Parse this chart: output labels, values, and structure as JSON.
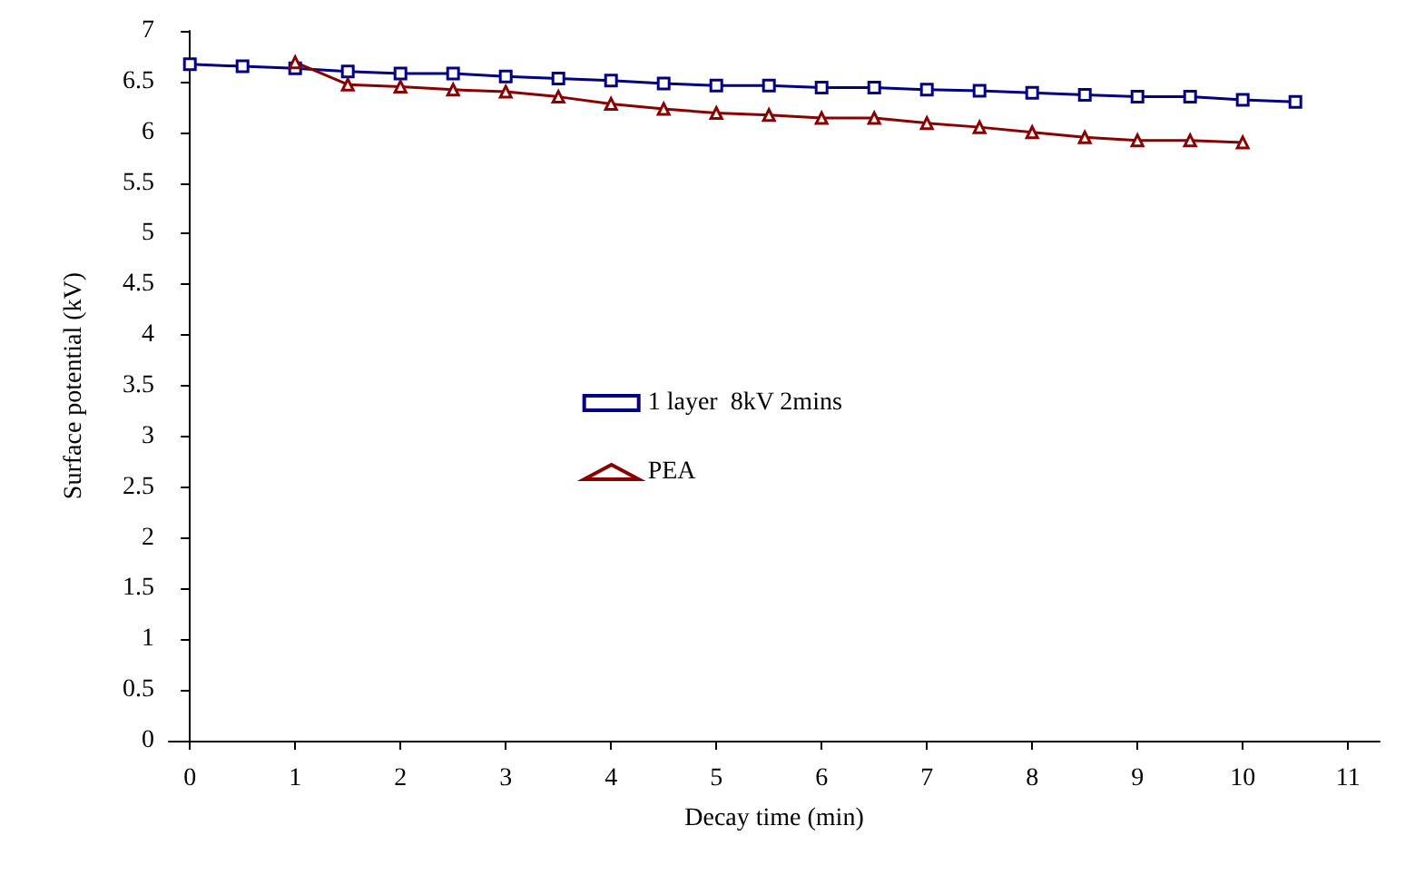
{
  "chart_data": {
    "type": "line",
    "xlabel": "Decay time (min)",
    "ylabel": "Surface potential (kV)",
    "xlim": [
      -0.2,
      11.3
    ],
    "xticks": [
      0,
      1,
      2,
      3,
      4,
      5,
      6,
      7,
      8,
      9,
      10,
      11
    ],
    "ylim": [
      0,
      7
    ],
    "yticks": [
      0,
      0.5,
      1,
      1.5,
      2,
      2.5,
      3,
      3.5,
      4,
      4.5,
      5,
      5.5,
      6,
      6.5,
      7
    ],
    "grid": false,
    "legend": "center",
    "series": [
      {
        "name": "1 layer  8kV 2mins",
        "color": "#000080",
        "marker": "square",
        "x": [
          0,
          0.5,
          1,
          1.5,
          2,
          2.5,
          3,
          3.5,
          4,
          4.5,
          5,
          5.5,
          6,
          6.5,
          7,
          7.5,
          8,
          8.5,
          9,
          9.5,
          10,
          10.5
        ],
        "values": [
          6.67,
          6.65,
          6.63,
          6.6,
          6.58,
          6.58,
          6.55,
          6.53,
          6.51,
          6.48,
          6.46,
          6.46,
          6.44,
          6.44,
          6.42,
          6.41,
          6.39,
          6.37,
          6.35,
          6.35,
          6.32,
          6.3
        ]
      },
      {
        "name": "PEA",
        "color": "#8b0000",
        "marker": "triangle",
        "x": [
          1,
          1.5,
          2,
          2.5,
          3,
          3.5,
          4,
          4.5,
          5,
          5.5,
          6,
          6.5,
          7,
          7.5,
          8,
          8.5,
          9,
          9.5,
          10
        ],
        "values": [
          6.69,
          6.47,
          6.45,
          6.42,
          6.4,
          6.35,
          6.28,
          6.23,
          6.19,
          6.17,
          6.14,
          6.14,
          6.09,
          6.05,
          6.0,
          5.95,
          5.92,
          5.92,
          5.9
        ]
      }
    ]
  }
}
